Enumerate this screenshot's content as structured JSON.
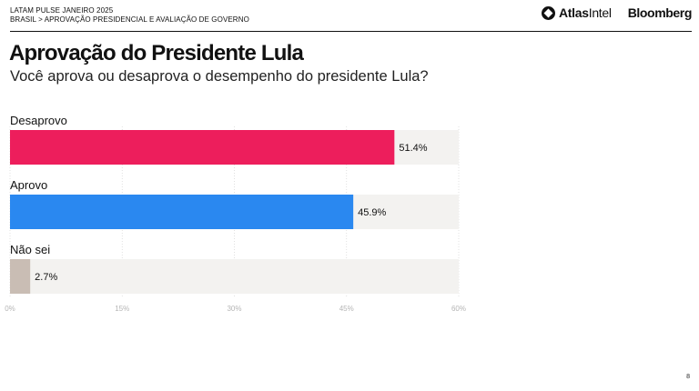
{
  "header": {
    "top": "LATAM PULSE JANEIRO 2025",
    "sub": "BRASIL > APROVAÇÃO PRESIDENCIAL E AVALIAÇÃO DE GOVERNO"
  },
  "logos": {
    "atlas_bold": "Atlas",
    "atlas_thin": "Intel",
    "bloomberg": "Bloomberg"
  },
  "page_number": "8",
  "chart_data": {
    "type": "bar",
    "orientation": "horizontal",
    "title": "Aprovação do Presidente Lula",
    "subtitle": "Você aprova ou desaprova o desempenho do presidente Lula?",
    "categories": [
      "Desaprovo",
      "Aprovo",
      "Não sei"
    ],
    "values": [
      51.4,
      45.9,
      2.7
    ],
    "value_labels": [
      "51.4%",
      "45.9%",
      "2.7%"
    ],
    "colors": [
      "#ed1e5c",
      "#2a88f0",
      "#c9bdb4"
    ],
    "track_color": "#f3f2f0",
    "xlim": [
      0,
      60
    ],
    "xticks": [
      0,
      15,
      30,
      45,
      60
    ],
    "xtick_labels": [
      "0%",
      "15%",
      "30%",
      "45%",
      "60%"
    ],
    "grid": true,
    "legend": "none"
  }
}
